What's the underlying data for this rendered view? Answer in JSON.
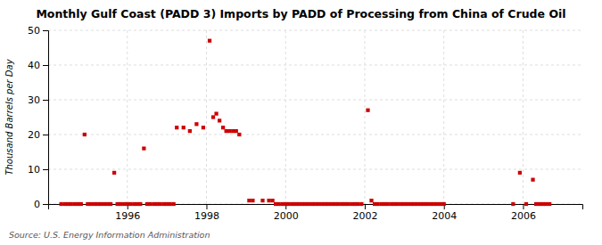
{
  "chart_data": {
    "type": "scatter",
    "title": "Monthly Gulf Coast (PADD 3) Imports by PADD of Processing from China of Crude Oil",
    "ylabel": "Thousand Barrels per Day",
    "source": "Source: U.S. Energy Information Administration",
    "color": "#cc0000",
    "marker": "square",
    "grid": true,
    "xlim": [
      1994.0,
      2007.5
    ],
    "ylim": [
      0,
      50
    ],
    "xticks": [
      1996,
      1998,
      2000,
      2002,
      2004,
      2006
    ],
    "yticks": [
      0,
      10,
      20,
      30,
      40,
      50
    ],
    "x": [
      1994.92,
      1995.67,
      1996.42,
      1997.25,
      1997.42,
      1997.58,
      1997.75,
      1997.92,
      1998.08,
      1998.17,
      1998.25,
      1998.33,
      1998.42,
      1998.5,
      1998.58,
      1998.67,
      1998.75,
      1998.83,
      1999.08,
      1999.17,
      1999.42,
      1999.58,
      1999.67,
      2002.08,
      2002.17,
      2005.92,
      2006.25,
      1994.33,
      1994.42,
      1994.5,
      1994.58,
      1994.67,
      1994.75,
      1994.83,
      1995.0,
      1995.08,
      1995.17,
      1995.25,
      1995.33,
      1995.42,
      1995.5,
      1995.58,
      1995.75,
      1995.83,
      1995.92,
      1996.0,
      1996.08,
      1996.17,
      1996.25,
      1996.33,
      1996.5,
      1996.58,
      1996.67,
      1996.75,
      1996.83,
      1996.92,
      1997.0,
      1997.08,
      1997.17,
      1999.75,
      1999.83,
      1999.92,
      2000.0,
      2000.08,
      2000.17,
      2000.25,
      2000.33,
      2000.42,
      2000.5,
      2000.58,
      2000.67,
      2000.75,
      2000.83,
      2000.92,
      2001.0,
      2001.08,
      2001.17,
      2001.25,
      2001.33,
      2001.42,
      2001.5,
      2001.58,
      2001.67,
      2001.75,
      2001.83,
      2001.92,
      2002.25,
      2002.33,
      2002.42,
      2002.5,
      2002.58,
      2002.67,
      2002.75,
      2002.83,
      2002.92,
      2003.0,
      2003.08,
      2003.17,
      2003.25,
      2003.33,
      2003.42,
      2003.5,
      2003.58,
      2003.67,
      2003.75,
      2003.83,
      2003.92,
      2004.0,
      2005.75,
      2006.08,
      2006.33,
      2006.42,
      2006.5,
      2006.58,
      2006.67
    ],
    "values": [
      20,
      9,
      16,
      22,
      22,
      21,
      23,
      22,
      47,
      25,
      26,
      24,
      22,
      21,
      21,
      21,
      21,
      20,
      1,
      1,
      1,
      1,
      1,
      27,
      1,
      9,
      7,
      0,
      0,
      0,
      0,
      0,
      0,
      0,
      0,
      0,
      0,
      0,
      0,
      0,
      0,
      0,
      0,
      0,
      0,
      0,
      0,
      0,
      0,
      0,
      0,
      0,
      0,
      0,
      0,
      0,
      0,
      0,
      0,
      0,
      0,
      0,
      0,
      0,
      0,
      0,
      0,
      0,
      0,
      0,
      0,
      0,
      0,
      0,
      0,
      0,
      0,
      0,
      0,
      0,
      0,
      0,
      0,
      0,
      0,
      0,
      0,
      0,
      0,
      0,
      0,
      0,
      0,
      0,
      0,
      0,
      0,
      0,
      0,
      0,
      0,
      0,
      0,
      0,
      0,
      0,
      0,
      0,
      0,
      0,
      0,
      0,
      0,
      0,
      0
    ]
  }
}
